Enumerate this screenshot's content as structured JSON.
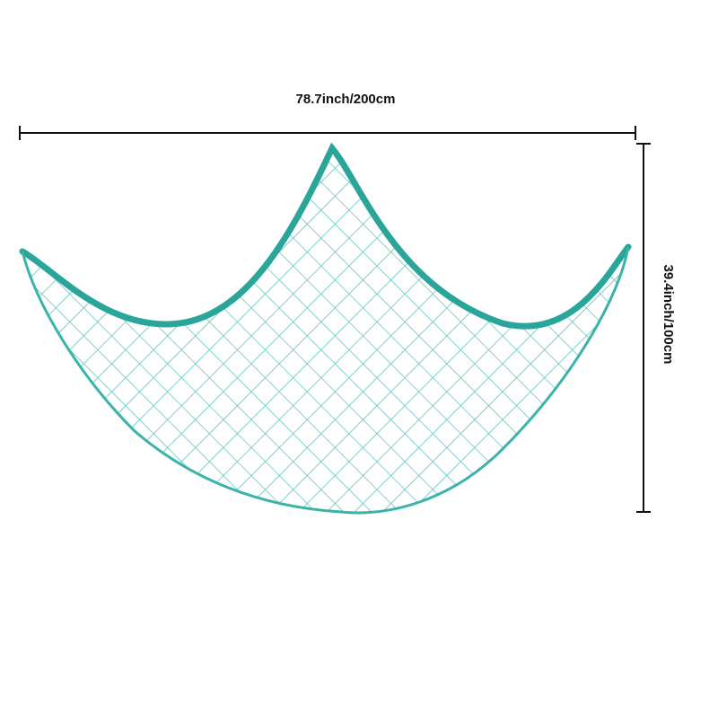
{
  "width_label": "78.7inch/200cm",
  "height_label": "39.4inch/100cm"
}
